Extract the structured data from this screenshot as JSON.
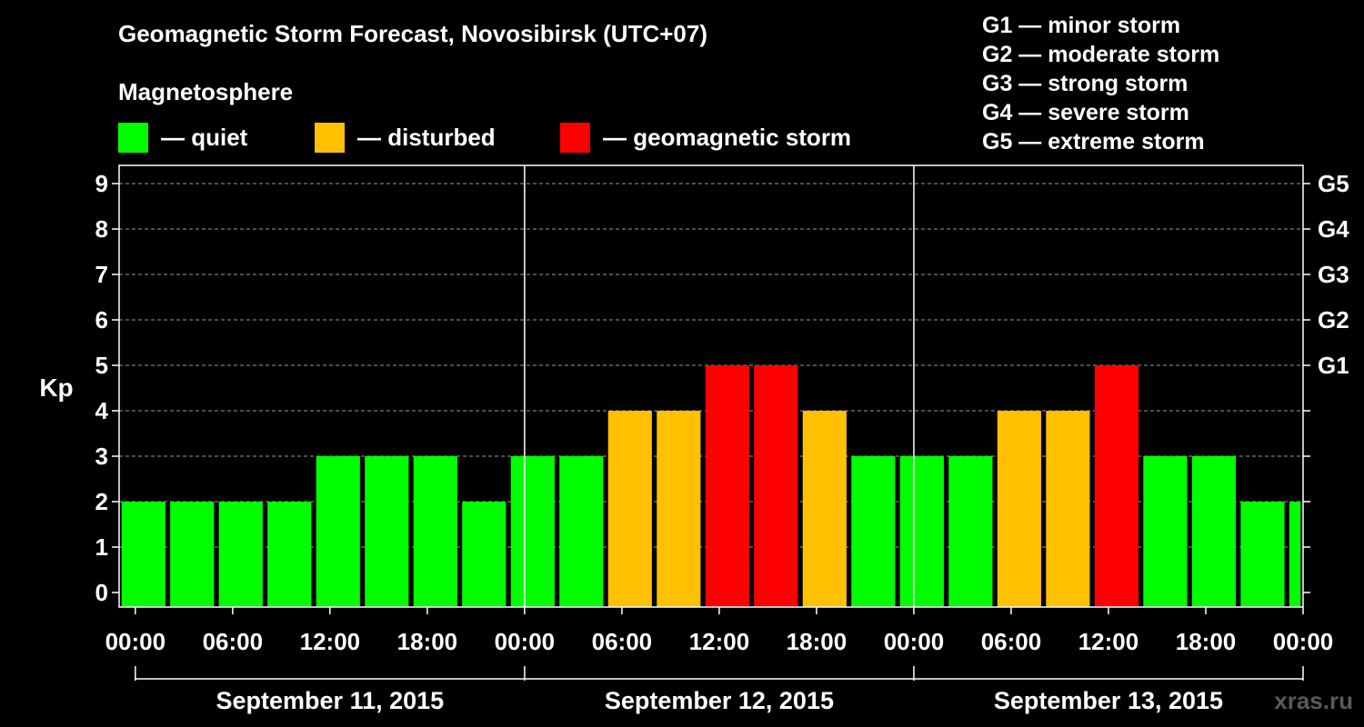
{
  "header": {
    "title": "Geomagnetic Storm Forecast, Novosibirsk (UTC+07)",
    "magnetosphere_label": "Magnetosphere"
  },
  "legend": [
    {
      "label": "— quiet",
      "color": "#00ff00"
    },
    {
      "label": "— disturbed",
      "color": "#ffc000"
    },
    {
      "label": "— geomagnetic storm",
      "color": "#ff0000"
    }
  ],
  "g_scale": [
    "G1 — minor storm",
    "G2 — moderate storm",
    "G3 — strong storm",
    "G4 — severe storm",
    "G5 — extreme storm"
  ],
  "watermark": "xras.ru",
  "chart_data": {
    "type": "bar",
    "title": "Geomagnetic Storm Forecast, Novosibirsk (UTC+07)",
    "ylabel": "Kp",
    "xlabel": "",
    "ylim": [
      0,
      9
    ],
    "grid": true,
    "yticks": [
      0,
      1,
      2,
      3,
      4,
      5,
      6,
      7,
      8,
      9
    ],
    "right_ticks": [
      {
        "kp": 5,
        "label": "G1"
      },
      {
        "kp": 6,
        "label": "G2"
      },
      {
        "kp": 7,
        "label": "G3"
      },
      {
        "kp": 8,
        "label": "G4"
      },
      {
        "kp": 9,
        "label": "G5"
      }
    ],
    "time_range_hours": [
      -1,
      72
    ],
    "xticks": [
      {
        "hour": 0,
        "label": "00:00"
      },
      {
        "hour": 6,
        "label": "06:00"
      },
      {
        "hour": 12,
        "label": "12:00"
      },
      {
        "hour": 18,
        "label": "18:00"
      },
      {
        "hour": 24,
        "label": "00:00"
      },
      {
        "hour": 30,
        "label": "06:00"
      },
      {
        "hour": 36,
        "label": "12:00"
      },
      {
        "hour": 42,
        "label": "18:00"
      },
      {
        "hour": 48,
        "label": "00:00"
      },
      {
        "hour": 54,
        "label": "06:00"
      },
      {
        "hour": 60,
        "label": "12:00"
      },
      {
        "hour": 66,
        "label": "18:00"
      },
      {
        "hour": 72,
        "label": "00:00"
      }
    ],
    "days": [
      {
        "label": "September 11, 2015",
        "start_hour": 0,
        "end_hour": 24
      },
      {
        "label": "September 12, 2015",
        "start_hour": 24,
        "end_hour": 48
      },
      {
        "label": "September 13, 2015",
        "start_hour": 48,
        "end_hour": 72
      }
    ],
    "level_colors": {
      "quiet": "#00ff00",
      "disturbed": "#ffc000",
      "storm": "#ff0000"
    },
    "bars": [
      {
        "start_hour": -1,
        "kp": 2
      },
      {
        "start_hour": 2,
        "kp": 2
      },
      {
        "start_hour": 5,
        "kp": 2
      },
      {
        "start_hour": 8,
        "kp": 2
      },
      {
        "start_hour": 11,
        "kp": 3
      },
      {
        "start_hour": 14,
        "kp": 3
      },
      {
        "start_hour": 17,
        "kp": 3
      },
      {
        "start_hour": 20,
        "kp": 2
      },
      {
        "start_hour": 23,
        "kp": 3
      },
      {
        "start_hour": 26,
        "kp": 3
      },
      {
        "start_hour": 29,
        "kp": 4
      },
      {
        "start_hour": 32,
        "kp": 4
      },
      {
        "start_hour": 35,
        "kp": 5
      },
      {
        "start_hour": 38,
        "kp": 5
      },
      {
        "start_hour": 41,
        "kp": 4
      },
      {
        "start_hour": 44,
        "kp": 3
      },
      {
        "start_hour": 47,
        "kp": 3
      },
      {
        "start_hour": 50,
        "kp": 3
      },
      {
        "start_hour": 53,
        "kp": 4
      },
      {
        "start_hour": 56,
        "kp": 4
      },
      {
        "start_hour": 59,
        "kp": 5
      },
      {
        "start_hour": 62,
        "kp": 3
      },
      {
        "start_hour": 65,
        "kp": 3
      },
      {
        "start_hour": 68,
        "kp": 2
      },
      {
        "start_hour": 71,
        "kp": 2
      }
    ]
  }
}
